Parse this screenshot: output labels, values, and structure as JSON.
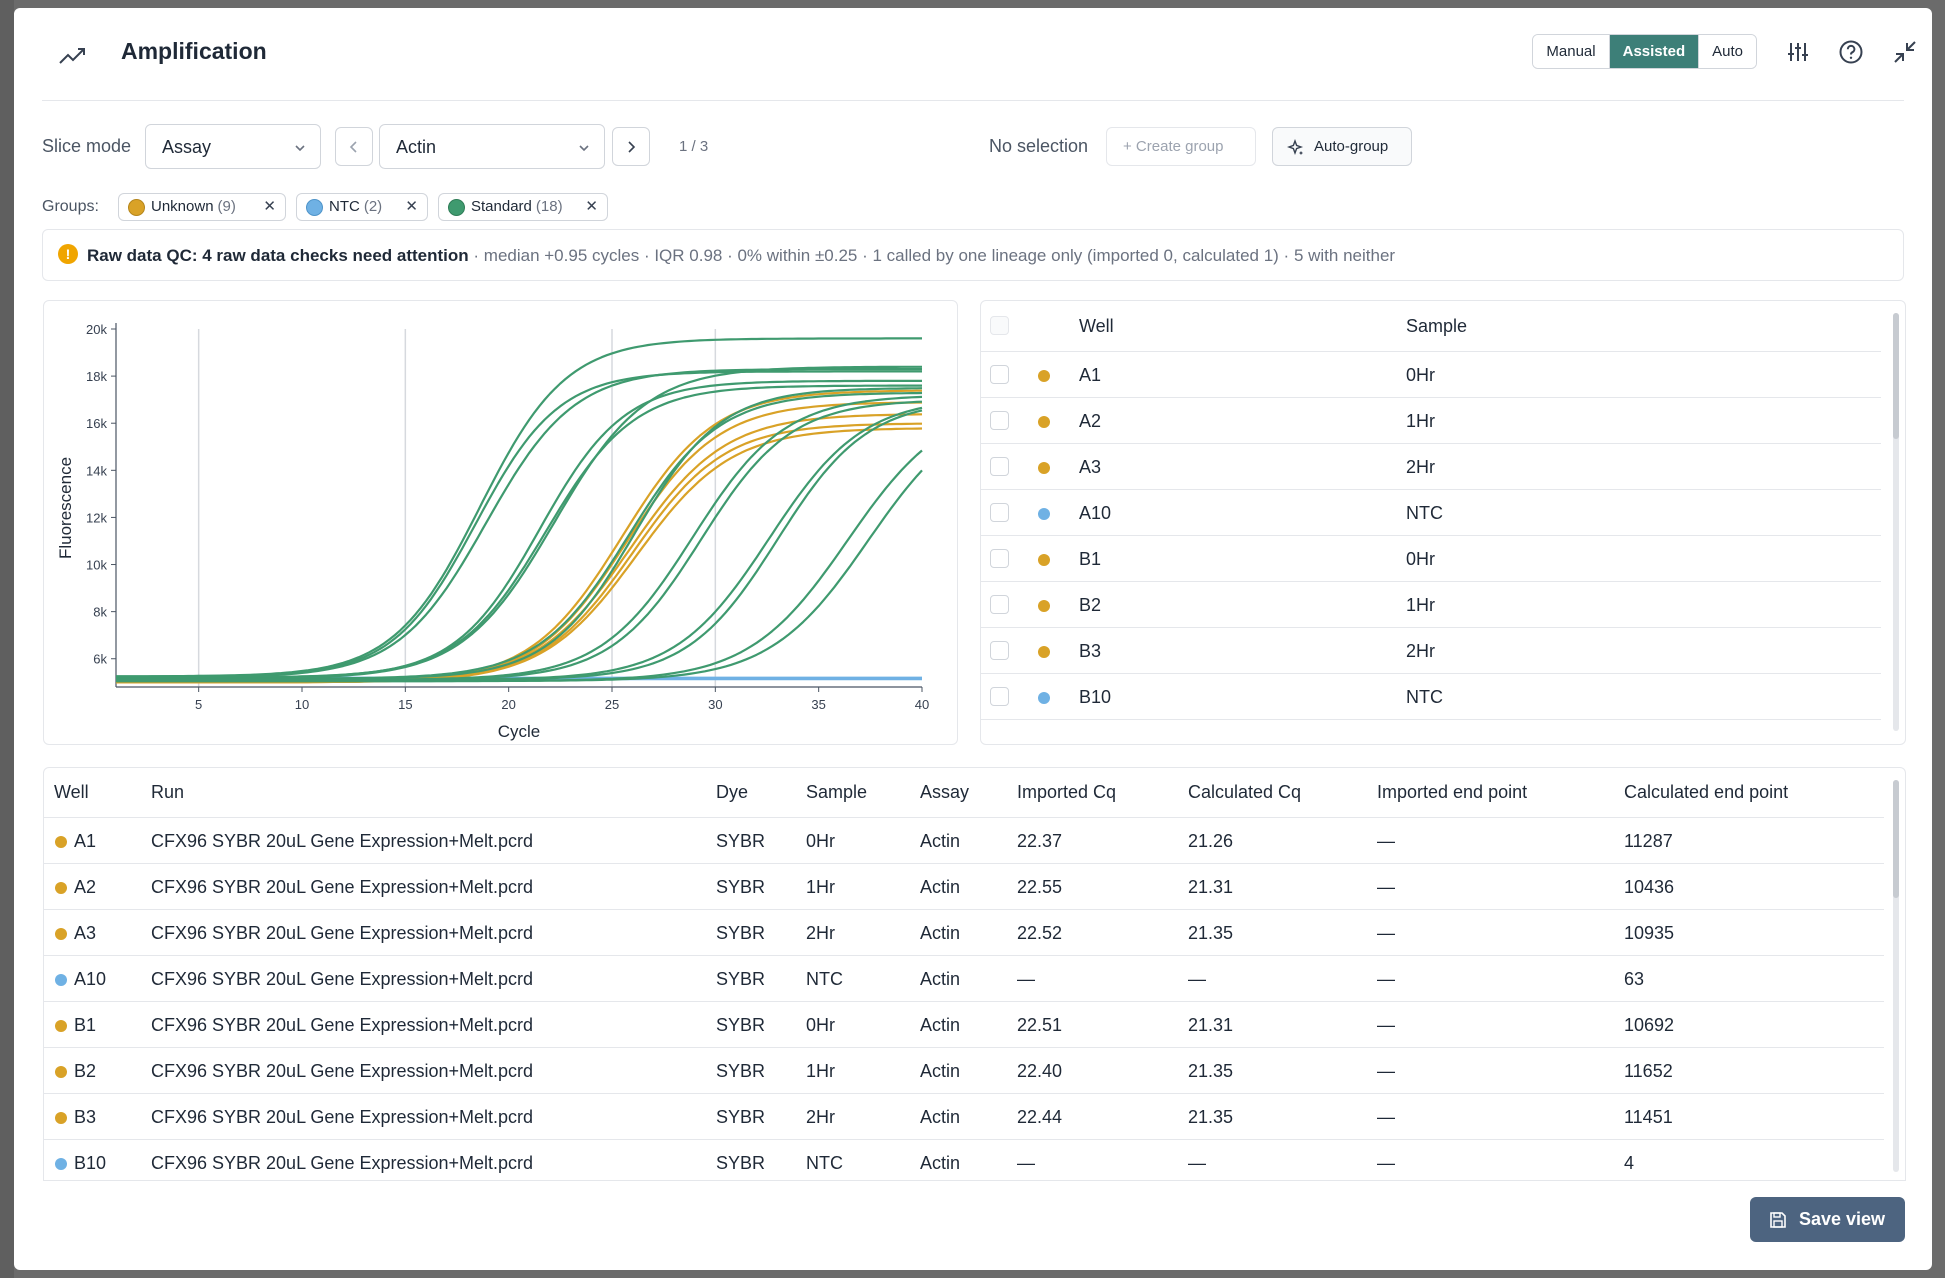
{
  "header": {
    "title": "Amplification",
    "modes": [
      "Manual",
      "Assisted",
      "Auto"
    ],
    "active_mode": "Assisted"
  },
  "toolbar": {
    "slice_mode_label": "Slice mode",
    "slice_mode_value": "Assay",
    "assay_value": "Actin",
    "page_counter": "1 / 3",
    "selection_text": "No selection",
    "create_group_label": "+ Create group",
    "auto_group_label": "Auto-group"
  },
  "groups": {
    "label": "Groups:",
    "items": [
      {
        "name": "Unknown",
        "count": "(9)",
        "color": "#d9a227"
      },
      {
        "name": "NTC",
        "count": "(2)",
        "color": "#6fb1e4"
      },
      {
        "name": "Standard",
        "count": "(18)",
        "color": "#3f9a6f"
      }
    ]
  },
  "qc": {
    "title": "Raw data QC: 4 raw data checks need attention",
    "detail": " · median +0.95 cycles · IQR 0.98 · 0% within ±0.25 · 1 called by one lineage only (imported 0, calculated 1) · 5 with neither"
  },
  "chart_data": {
    "type": "line",
    "xlabel": "Cycle",
    "ylabel": "Fluorescence",
    "xlim": [
      1,
      40
    ],
    "ylim": [
      4800,
      20000
    ],
    "x_ticks": [
      5,
      10,
      15,
      20,
      25,
      30,
      35,
      40
    ],
    "y_ticks": [
      "6k",
      "8k",
      "10k",
      "12k",
      "14k",
      "16k",
      "18k",
      "20k"
    ],
    "y_tick_values": [
      6000,
      8000,
      10000,
      12000,
      14000,
      16000,
      18000,
      20000
    ],
    "vertical_grid_at": [
      5,
      15,
      25,
      30
    ],
    "series": [
      {
        "group": "Standard",
        "color": "#3f9a6f",
        "baseline": 5250,
        "plateau": 19600,
        "midpoint": 18.6,
        "slope": 0.48
      },
      {
        "group": "Standard",
        "color": "#3f9a6f",
        "baseline": 5250,
        "plateau": 18200,
        "midpoint": 18.4,
        "slope": 0.5
      },
      {
        "group": "Standard",
        "color": "#3f9a6f",
        "baseline": 5200,
        "plateau": 18300,
        "midpoint": 18.9,
        "slope": 0.47
      },
      {
        "group": "Standard",
        "color": "#3f9a6f",
        "baseline": 5200,
        "plateau": 17600,
        "midpoint": 21.8,
        "slope": 0.47
      },
      {
        "group": "Standard",
        "color": "#3f9a6f",
        "baseline": 5200,
        "plateau": 17800,
        "midpoint": 21.5,
        "slope": 0.49
      },
      {
        "group": "Standard",
        "color": "#3f9a6f",
        "baseline": 5150,
        "plateau": 18400,
        "midpoint": 22.2,
        "slope": 0.45
      },
      {
        "group": "Standard",
        "color": "#3f9a6f",
        "baseline": 5150,
        "plateau": 17300,
        "midpoint": 25.8,
        "slope": 0.46
      },
      {
        "group": "Standard",
        "color": "#3f9a6f",
        "baseline": 5150,
        "plateau": 17500,
        "midpoint": 26.1,
        "slope": 0.48
      },
      {
        "group": "Standard",
        "color": "#3f9a6f",
        "baseline": 5100,
        "plateau": 17200,
        "midpoint": 28.9,
        "slope": 0.45
      },
      {
        "group": "Standard",
        "color": "#3f9a6f",
        "baseline": 5100,
        "plateau": 17000,
        "midpoint": 29.3,
        "slope": 0.46
      },
      {
        "group": "Standard",
        "color": "#3f9a6f",
        "baseline": 5100,
        "plateau": 17100,
        "midpoint": 32.6,
        "slope": 0.44
      },
      {
        "group": "Standard",
        "color": "#3f9a6f",
        "baseline": 5100,
        "plateau": 17000,
        "midpoint": 33.0,
        "slope": 0.46
      },
      {
        "group": "Standard",
        "color": "#3f9a6f",
        "baseline": 5050,
        "plateau": 17000,
        "midpoint": 36.4,
        "slope": 0.42
      },
      {
        "group": "Standard",
        "color": "#3f9a6f",
        "baseline": 5050,
        "plateau": 17000,
        "midpoint": 37.4,
        "slope": 0.42
      },
      {
        "group": "Unknown",
        "color": "#d9a227",
        "baseline": 5000,
        "plateau": 17400,
        "midpoint": 25.5,
        "slope": 0.45
      },
      {
        "group": "Unknown",
        "color": "#d9a227",
        "baseline": 5000,
        "plateau": 16900,
        "midpoint": 25.7,
        "slope": 0.45
      },
      {
        "group": "Unknown",
        "color": "#d9a227",
        "baseline": 5000,
        "plateau": 16400,
        "midpoint": 25.9,
        "slope": 0.44
      },
      {
        "group": "Unknown",
        "color": "#d9a227",
        "baseline": 5000,
        "plateau": 16000,
        "midpoint": 26.0,
        "slope": 0.45
      },
      {
        "group": "Unknown",
        "color": "#d9a227",
        "baseline": 5000,
        "plateau": 15800,
        "midpoint": 26.2,
        "slope": 0.44
      },
      {
        "group": "NTC",
        "color": "#6fb1e4",
        "baseline": 5150,
        "plateau": 5150,
        "midpoint": 60,
        "slope": 0.3
      },
      {
        "group": "NTC",
        "color": "#6fb1e4",
        "baseline": 5180,
        "plateau": 5180,
        "midpoint": 60,
        "slope": 0.3
      }
    ]
  },
  "well_list": {
    "headers": {
      "well": "Well",
      "sample": "Sample"
    },
    "rows": [
      {
        "well": "A1",
        "sample": "0Hr",
        "color": "#d9a227"
      },
      {
        "well": "A2",
        "sample": "1Hr",
        "color": "#d9a227"
      },
      {
        "well": "A3",
        "sample": "2Hr",
        "color": "#d9a227"
      },
      {
        "well": "A10",
        "sample": "NTC",
        "color": "#6fb1e4"
      },
      {
        "well": "B1",
        "sample": "0Hr",
        "color": "#d9a227"
      },
      {
        "well": "B2",
        "sample": "1Hr",
        "color": "#d9a227"
      },
      {
        "well": "B3",
        "sample": "2Hr",
        "color": "#d9a227"
      },
      {
        "well": "B10",
        "sample": "NTC",
        "color": "#6fb1e4"
      }
    ]
  },
  "results_table": {
    "headers": {
      "well": "Well",
      "run": "Run",
      "dye": "Dye",
      "sample": "Sample",
      "assay": "Assay",
      "imported_cq": "Imported Cq",
      "calculated_cq": "Calculated Cq",
      "imported_end": "Imported end point",
      "calculated_end": "Calculated end point"
    },
    "rows": [
      {
        "well": "A1",
        "color": "#d9a227",
        "run": "CFX96 SYBR 20uL Gene Expression+Melt.pcrd",
        "dye": "SYBR",
        "sample": "0Hr",
        "assay": "Actin",
        "imported_cq": "22.37",
        "calculated_cq": "21.26",
        "imported_end": "—",
        "calculated_end": "11287"
      },
      {
        "well": "A2",
        "color": "#d9a227",
        "run": "CFX96 SYBR 20uL Gene Expression+Melt.pcrd",
        "dye": "SYBR",
        "sample": "1Hr",
        "assay": "Actin",
        "imported_cq": "22.55",
        "calculated_cq": "21.31",
        "imported_end": "—",
        "calculated_end": "10436"
      },
      {
        "well": "A3",
        "color": "#d9a227",
        "run": "CFX96 SYBR 20uL Gene Expression+Melt.pcrd",
        "dye": "SYBR",
        "sample": "2Hr",
        "assay": "Actin",
        "imported_cq": "22.52",
        "calculated_cq": "21.35",
        "imported_end": "—",
        "calculated_end": "10935"
      },
      {
        "well": "A10",
        "color": "#6fb1e4",
        "run": "CFX96 SYBR 20uL Gene Expression+Melt.pcrd",
        "dye": "SYBR",
        "sample": "NTC",
        "assay": "Actin",
        "imported_cq": "—",
        "calculated_cq": "—",
        "imported_end": "—",
        "calculated_end": "63"
      },
      {
        "well": "B1",
        "color": "#d9a227",
        "run": "CFX96 SYBR 20uL Gene Expression+Melt.pcrd",
        "dye": "SYBR",
        "sample": "0Hr",
        "assay": "Actin",
        "imported_cq": "22.51",
        "calculated_cq": "21.31",
        "imported_end": "—",
        "calculated_end": "10692"
      },
      {
        "well": "B2",
        "color": "#d9a227",
        "run": "CFX96 SYBR 20uL Gene Expression+Melt.pcrd",
        "dye": "SYBR",
        "sample": "1Hr",
        "assay": "Actin",
        "imported_cq": "22.40",
        "calculated_cq": "21.35",
        "imported_end": "—",
        "calculated_end": "11652"
      },
      {
        "well": "B3",
        "color": "#d9a227",
        "run": "CFX96 SYBR 20uL Gene Expression+Melt.pcrd",
        "dye": "SYBR",
        "sample": "2Hr",
        "assay": "Actin",
        "imported_cq": "22.44",
        "calculated_cq": "21.35",
        "imported_end": "—",
        "calculated_end": "11451"
      },
      {
        "well": "B10",
        "color": "#6fb1e4",
        "run": "CFX96 SYBR 20uL Gene Expression+Melt.pcrd",
        "dye": "SYBR",
        "sample": "NTC",
        "assay": "Actin",
        "imported_cq": "—",
        "calculated_cq": "—",
        "imported_end": "—",
        "calculated_end": "4"
      }
    ]
  },
  "footer": {
    "save_view_label": "Save view"
  }
}
